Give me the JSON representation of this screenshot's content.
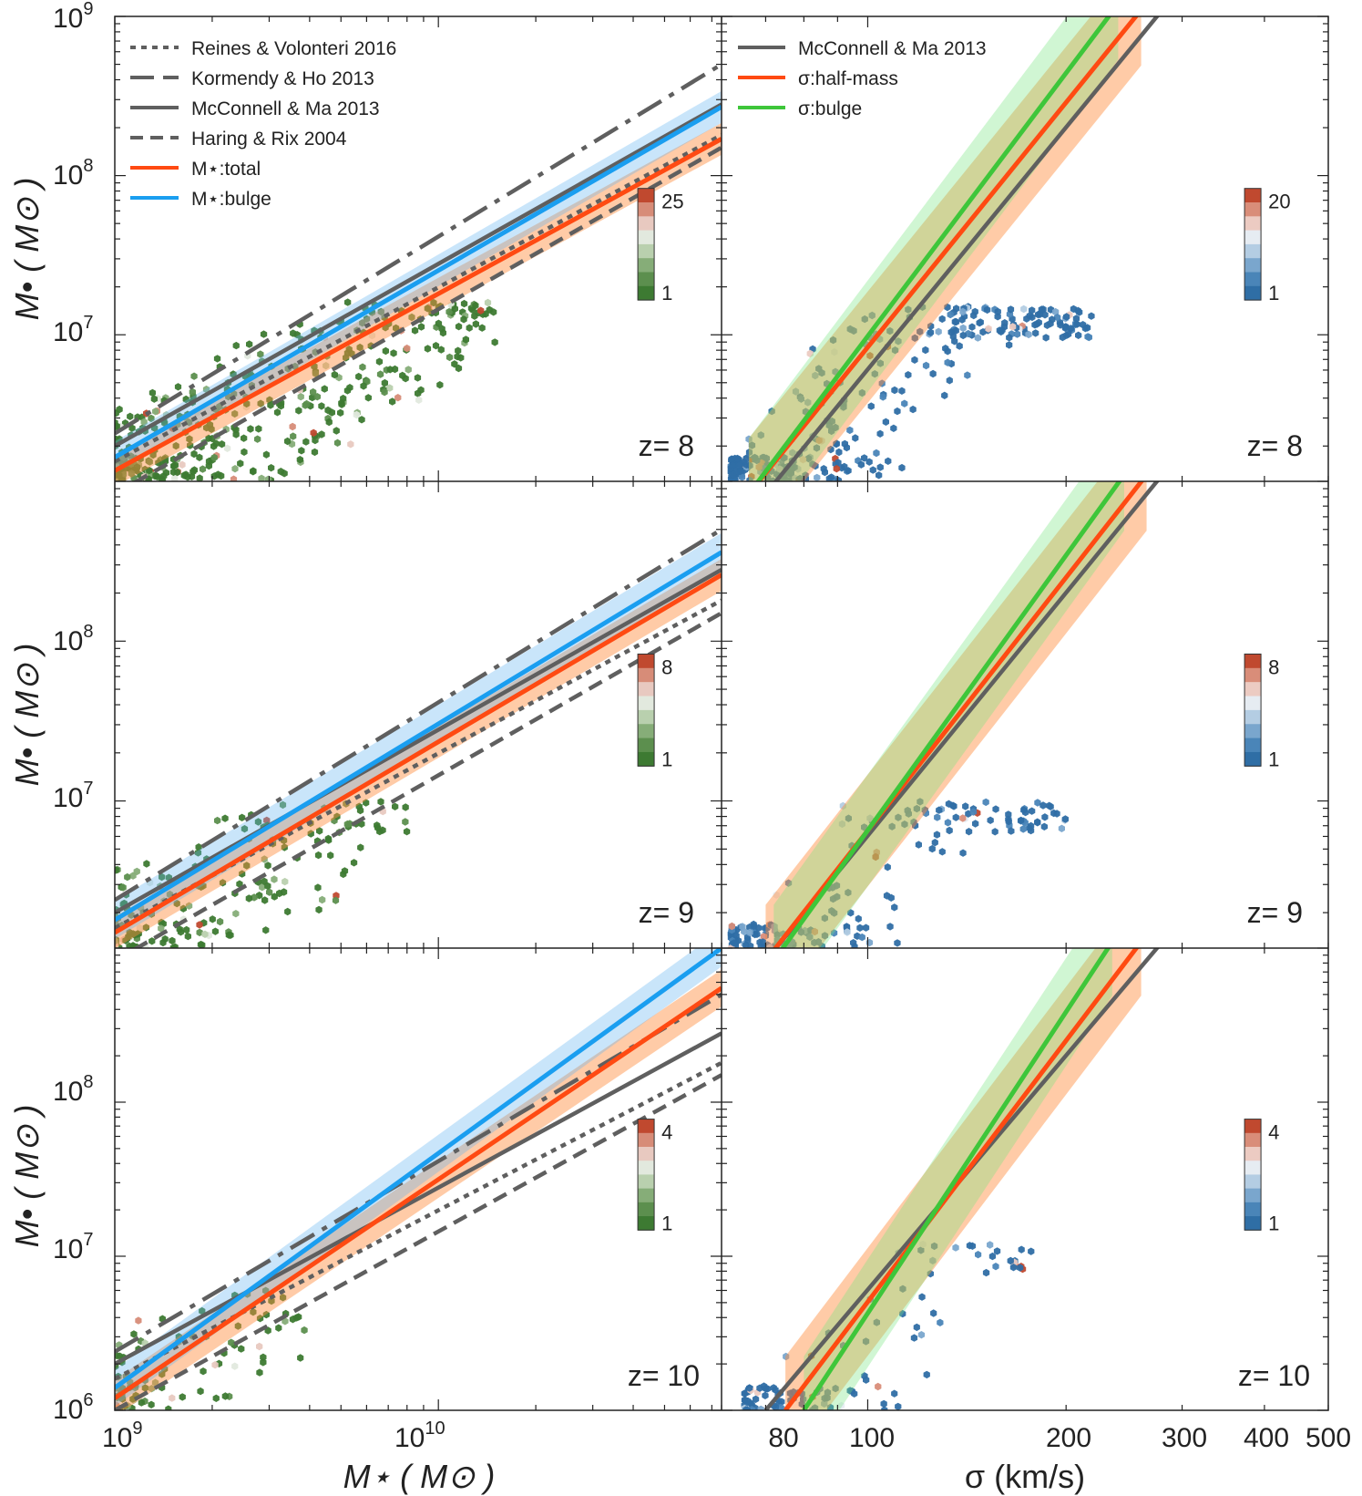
{
  "figure": {
    "y_axis_label": "M• ( M⊙ )",
    "x_axis_label_left": "M⋆ ( M⊙ )",
    "x_axis_label_right": "σ (km/s)"
  },
  "colors": {
    "gray_relation": "#5f5f5f",
    "total": "#ff4a12",
    "bulge": "#1a9ef0",
    "bulge_sigma": "#3ec63a",
    "green_hex": "#3d7a32",
    "blue_hex": "#3b7cb0",
    "red_hex": "#c0492f"
  },
  "chart_data": [
    {
      "type": "scatter",
      "panel": "left",
      "redshift_label": "z= 8",
      "xlabel": "",
      "ylabel": "M• ( M⊙ )",
      "xscale": "log",
      "yscale": "log",
      "xlim": [
        1000000000.0,
        75000000000.0
      ],
      "ylim": [
        1200000.0,
        1000000000.0
      ],
      "xticks": [],
      "yticks": [
        "10^7",
        "10^8",
        "10^9"
      ],
      "legend_position": "top-left",
      "legend": [
        {
          "label": "Reines & Volonteri 2016",
          "style": "dotted"
        },
        {
          "label": "Kormendy & Ho 2013",
          "style": "long-dash"
        },
        {
          "label": "McConnell & Ma 2013",
          "style": "solid-gray"
        },
        {
          "label": "Haring & Rix 2004",
          "style": "dashed"
        },
        {
          "label": "M⋆:total",
          "style": "solid-red"
        },
        {
          "label": "M⋆:bulge",
          "style": "solid-blue"
        }
      ],
      "series": [
        {
          "name": "Reines & Volonteri 2016",
          "x": [
            1000000000.0,
            75000000000.0
          ],
          "y": [
            1600000.0,
            180000000.0
          ]
        },
        {
          "name": "Kormendy & Ho 2013",
          "x": [
            1000000000.0,
            75000000000.0
          ],
          "y": [
            2400000.0,
            500000000.0
          ]
        },
        {
          "name": "McConnell & Ma 2013",
          "x": [
            1000000000.0,
            75000000000.0
          ],
          "y": [
            2000000.0,
            280000000.0
          ]
        },
        {
          "name": "Haring & Rix 2004",
          "x": [
            1000000000.0,
            75000000000.0
          ],
          "y": [
            1000000.0,
            150000000.0
          ]
        },
        {
          "name": "M⋆:total",
          "x": [
            1000000000.0,
            75000000000.0
          ],
          "y": [
            1400000.0,
            170000000.0
          ],
          "band": 0.1
        },
        {
          "name": "M⋆:bulge",
          "x": [
            1000000000.0,
            75000000000.0
          ],
          "y": [
            1700000.0,
            270000000.0
          ],
          "band": 0.1
        }
      ],
      "colorbar": {
        "max_label": "25",
        "min_label": "1",
        "palette": "green"
      },
      "hex_cloud": {
        "x_range": [
          1000000000.0,
          15000000000.0
        ],
        "y_range": [
          1200000.0,
          16000000.0
        ],
        "count": 420
      }
    },
    {
      "type": "scatter",
      "panel": "right",
      "redshift_label": "z= 8",
      "xscale": "log",
      "yscale": "log",
      "xlim": [
        60,
        500
      ],
      "ylim": [
        1200000.0,
        1000000000.0
      ],
      "legend_position": "top-left",
      "legend": [
        {
          "label": "McConnell & Ma 2013",
          "style": "solid-gray"
        },
        {
          "label": "σ:half-mass",
          "style": "solid-red"
        },
        {
          "label": "σ:bulge",
          "style": "solid-green"
        }
      ],
      "series": [
        {
          "name": "McConnell & Ma 2013",
          "x": [
            70,
            280
          ],
          "y": [
            1000000.0,
            1100000000.0
          ]
        },
        {
          "name": "σ:half-mass",
          "x": [
            66,
            260
          ],
          "y": [
            1000000.0,
            1100000000.0
          ],
          "band": 0.35
        },
        {
          "name": "σ:bulge",
          "x": [
            66,
            240
          ],
          "y": [
            1000000.0,
            1200000000.0
          ],
          "band": 0.35
        }
      ],
      "colorbar": {
        "max_label": "20",
        "min_label": "1",
        "palette": "blue"
      },
      "hex_cloud": {
        "x_range": [
          62,
          220
        ],
        "y_range": [
          1200000.0,
          15000000.0
        ],
        "count": 360
      }
    },
    {
      "type": "scatter",
      "panel": "left",
      "redshift_label": "z= 9",
      "xlabel": "",
      "ylabel": "M• ( M⊙ )",
      "xscale": "log",
      "yscale": "log",
      "xlim": [
        1000000000.0,
        75000000000.0
      ],
      "ylim": [
        1200000.0,
        1000000000.0
      ],
      "yticks": [
        "10^7",
        "10^8"
      ],
      "series": [
        {
          "name": "Reines & Volonteri 2016",
          "x": [
            1000000000.0,
            75000000000.0
          ],
          "y": [
            1600000.0,
            180000000.0
          ]
        },
        {
          "name": "Kormendy & Ho 2013",
          "x": [
            1000000000.0,
            75000000000.0
          ],
          "y": [
            2400000.0,
            500000000.0
          ]
        },
        {
          "name": "McConnell & Ma 2013",
          "x": [
            1000000000.0,
            75000000000.0
          ],
          "y": [
            2000000.0,
            280000000.0
          ]
        },
        {
          "name": "Haring & Rix 2004",
          "x": [
            1000000000.0,
            75000000000.0
          ],
          "y": [
            1000000.0,
            150000000.0
          ]
        },
        {
          "name": "M⋆:total",
          "x": [
            1000000000.0,
            75000000000.0
          ],
          "y": [
            1500000.0,
            260000000.0
          ],
          "band": 0.1
        },
        {
          "name": "M⋆:bulge",
          "x": [
            1000000000.0,
            75000000000.0
          ],
          "y": [
            1800000.0,
            360000000.0
          ],
          "band": 0.12
        }
      ],
      "colorbar": {
        "max_label": "8",
        "min_label": "1",
        "palette": "green"
      },
      "hex_cloud": {
        "x_range": [
          1000000000.0,
          8000000000.0
        ],
        "y_range": [
          1200000.0,
          10000000.0
        ],
        "count": 180
      }
    },
    {
      "type": "scatter",
      "panel": "right",
      "redshift_label": "z= 9",
      "xscale": "log",
      "yscale": "log",
      "xlim": [
        60,
        500
      ],
      "ylim": [
        1200000.0,
        1000000000.0
      ],
      "series": [
        {
          "name": "McConnell & Ma 2013",
          "x": [
            70,
            280
          ],
          "y": [
            1000000.0,
            1100000000.0
          ]
        },
        {
          "name": "σ:half-mass",
          "x": [
            70,
            265
          ],
          "y": [
            1000000.0,
            1100000000.0
          ],
          "band": 0.35
        },
        {
          "name": "σ:bulge",
          "x": [
            72,
            245
          ],
          "y": [
            1000000.0,
            1100000000.0
          ],
          "band": 0.35
        }
      ],
      "colorbar": {
        "max_label": "8",
        "min_label": "1",
        "palette": "blue"
      },
      "hex_cloud": {
        "x_range": [
          62,
          200
        ],
        "y_range": [
          1200000.0,
          10000000.0
        ],
        "count": 200
      }
    },
    {
      "type": "scatter",
      "panel": "left",
      "redshift_label": "z= 10",
      "xlabel": "M⋆ ( M⊙ )",
      "ylabel": "M• ( M⊙ )",
      "xscale": "log",
      "yscale": "log",
      "xlim": [
        1000000000.0,
        75000000000.0
      ],
      "ylim": [
        1000000.0,
        1000000000.0
      ],
      "xticks": [
        "10^9",
        "10^10"
      ],
      "yticks": [
        "10^6",
        "10^7",
        "10^8"
      ],
      "series": [
        {
          "name": "Reines & Volonteri 2016",
          "x": [
            1000000000.0,
            75000000000.0
          ],
          "y": [
            1600000.0,
            180000000.0
          ]
        },
        {
          "name": "Kormendy & Ho 2013",
          "x": [
            1000000000.0,
            75000000000.0
          ],
          "y": [
            2400000.0,
            500000000.0
          ]
        },
        {
          "name": "McConnell & Ma 2013",
          "x": [
            1000000000.0,
            75000000000.0
          ],
          "y": [
            2000000.0,
            280000000.0
          ]
        },
        {
          "name": "Haring & Rix 2004",
          "x": [
            1000000000.0,
            75000000000.0
          ],
          "y": [
            1000000.0,
            150000000.0
          ]
        },
        {
          "name": "M⋆:total",
          "x": [
            1000000000.0,
            75000000000.0
          ],
          "y": [
            1200000.0,
            550000000.0
          ],
          "band": 0.12
        },
        {
          "name": "M⋆:bulge",
          "x": [
            1000000000.0,
            75000000000.0
          ],
          "y": [
            1400000.0,
            1000000000.0
          ],
          "band": 0.12
        }
      ],
      "colorbar": {
        "max_label": "4",
        "min_label": "1",
        "palette": "green"
      },
      "hex_cloud": {
        "x_range": [
          1000000000.0,
          4000000000.0
        ],
        "y_range": [
          1000000.0,
          6000000.0
        ],
        "count": 90
      }
    },
    {
      "type": "scatter",
      "panel": "right",
      "redshift_label": "z= 10",
      "xlabel": "σ (km/s)",
      "xscale": "log",
      "yscale": "log",
      "xlim": [
        60,
        500
      ],
      "ylim": [
        1000000.0,
        1000000000.0
      ],
      "xticks": [
        "80",
        "100",
        "200",
        "300",
        "400",
        "500"
      ],
      "series": [
        {
          "name": "McConnell & Ma 2013",
          "x": [
            70,
            280
          ],
          "y": [
            1000000.0,
            1100000000.0
          ]
        },
        {
          "name": "σ:half-mass",
          "x": [
            75,
            260
          ],
          "y": [
            1000000.0,
            1100000000.0
          ],
          "band": 0.35
        },
        {
          "name": "σ:bulge",
          "x": [
            80,
            235
          ],
          "y": [
            1000000.0,
            1100000000.0
          ],
          "band": 0.35
        }
      ],
      "colorbar": {
        "max_label": "4",
        "min_label": "1",
        "palette": "blue"
      },
      "hex_cloud": {
        "x_range": [
          65,
          180
        ],
        "y_range": [
          1000000.0,
          12000000.0
        ],
        "count": 110
      }
    }
  ]
}
